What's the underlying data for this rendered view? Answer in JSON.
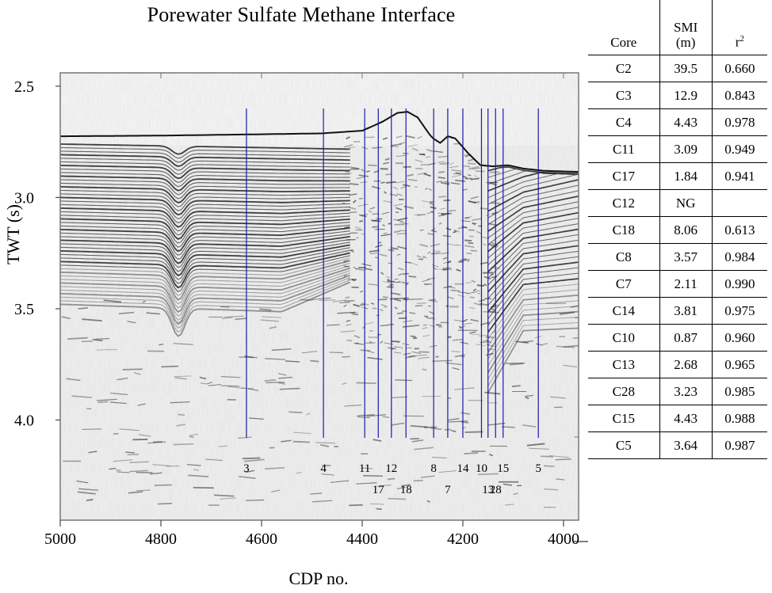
{
  "chart_data": {
    "type": "seismic-profile",
    "title": "Porewater Sulfate Methane Interface",
    "xlabel": "CDP no.",
    "ylabel": "TWT (s)",
    "x_ticks": [
      "5000",
      "4800",
      "4600",
      "4400",
      "4200",
      "4000"
    ],
    "y_ticks": [
      "2.5",
      "3.0",
      "3.5",
      "4.0"
    ],
    "xlim": [
      5000,
      3970
    ],
    "ylim": [
      2.44,
      4.45
    ],
    "cores": [
      {
        "label": "3",
        "cdp": 4630,
        "row": 1
      },
      {
        "label": "4",
        "cdp": 4477,
        "row": 1
      },
      {
        "label": "11",
        "cdp": 4395,
        "row": 1
      },
      {
        "label": "17",
        "cdp": 4368,
        "row": 2
      },
      {
        "label": "12",
        "cdp": 4342,
        "row": 1
      },
      {
        "label": "18",
        "cdp": 4313,
        "row": 2
      },
      {
        "label": "8",
        "cdp": 4258,
        "row": 1
      },
      {
        "label": "7",
        "cdp": 4230,
        "row": 2
      },
      {
        "label": "14",
        "cdp": 4200,
        "row": 1
      },
      {
        "label": "10",
        "cdp": 4163,
        "row": 1
      },
      {
        "label": "13",
        "cdp": 4150,
        "row": 2
      },
      {
        "label": "28",
        "cdp": 4135,
        "row": 2
      },
      {
        "label": "15",
        "cdp": 4120,
        "row": 1
      },
      {
        "label": "5",
        "cdp": 4050,
        "row": 1
      }
    ],
    "core_line_top_twt": 2.6,
    "core_line_bottom_twt": 4.08
  },
  "table": {
    "headers": [
      "Core",
      "SMI\n(m)",
      "r²"
    ],
    "header_core": "Core",
    "header_smi_1": "SMI",
    "header_smi_2": "(m)",
    "header_r": "r",
    "header_r_sup": "2",
    "rows": [
      {
        "core": "C2",
        "smi": "39.5",
        "r2": "0.660"
      },
      {
        "core": "C3",
        "smi": "12.9",
        "r2": "0.843"
      },
      {
        "core": "C4",
        "smi": "4.43",
        "r2": "0.978"
      },
      {
        "core": "C11",
        "smi": "3.09",
        "r2": "0.949"
      },
      {
        "core": "C17",
        "smi": "1.84",
        "r2": "0.941"
      },
      {
        "core": "C12",
        "smi": "NG",
        "r2": ""
      },
      {
        "core": "C18",
        "smi": "8.06",
        "r2": "0.613"
      },
      {
        "core": "C8",
        "smi": "3.57",
        "r2": "0.984"
      },
      {
        "core": "C7",
        "smi": "2.11",
        "r2": "0.990"
      },
      {
        "core": "C14",
        "smi": "3.81",
        "r2": "0.975"
      },
      {
        "core": "C10",
        "smi": "0.87",
        "r2": "0.960"
      },
      {
        "core": "C13",
        "smi": "2.68",
        "r2": "0.965"
      },
      {
        "core": "C28",
        "smi": "3.23",
        "r2": "0.985"
      },
      {
        "core": "C15",
        "smi": "4.43",
        "r2": "0.988"
      },
      {
        "core": "C5",
        "smi": "3.64",
        "r2": "0.987"
      }
    ]
  },
  "colors": {
    "core_line": "#1a1aa8",
    "seafloor": "#111111",
    "axis": "#555555"
  }
}
